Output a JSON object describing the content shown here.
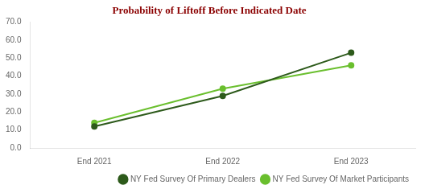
{
  "chart_data": {
    "type": "line",
    "title": "Probability of Liftoff Before Indicated Date",
    "categories": [
      "End 2021",
      "End 2022",
      "End 2023"
    ],
    "series": [
      {
        "name": "NY Fed Survey Of Primary Dealers",
        "color": "#2d5a1b",
        "marker": "circle",
        "values": [
          12.0,
          29.0,
          53.0
        ]
      },
      {
        "name": "NY Fed Survey Of Market Participants",
        "color": "#6abf2e",
        "marker": "circle",
        "values": [
          14.0,
          33.0,
          46.0
        ]
      }
    ],
    "ylim": [
      0.0,
      70.0
    ],
    "yticks": [
      {
        "value": 0,
        "label": "0.0"
      },
      {
        "value": 10,
        "label": "10.0"
      },
      {
        "value": 20,
        "label": "20.0"
      },
      {
        "value": 30,
        "label": "30.0"
      },
      {
        "value": 40,
        "label": "40.0"
      },
      {
        "value": 50,
        "label": "50.0"
      },
      {
        "value": 60,
        "label": "60.0"
      },
      {
        "value": 70,
        "label": "70.0"
      }
    ],
    "grid": false,
    "legend": "lower right",
    "title_color": "#8b0000"
  }
}
